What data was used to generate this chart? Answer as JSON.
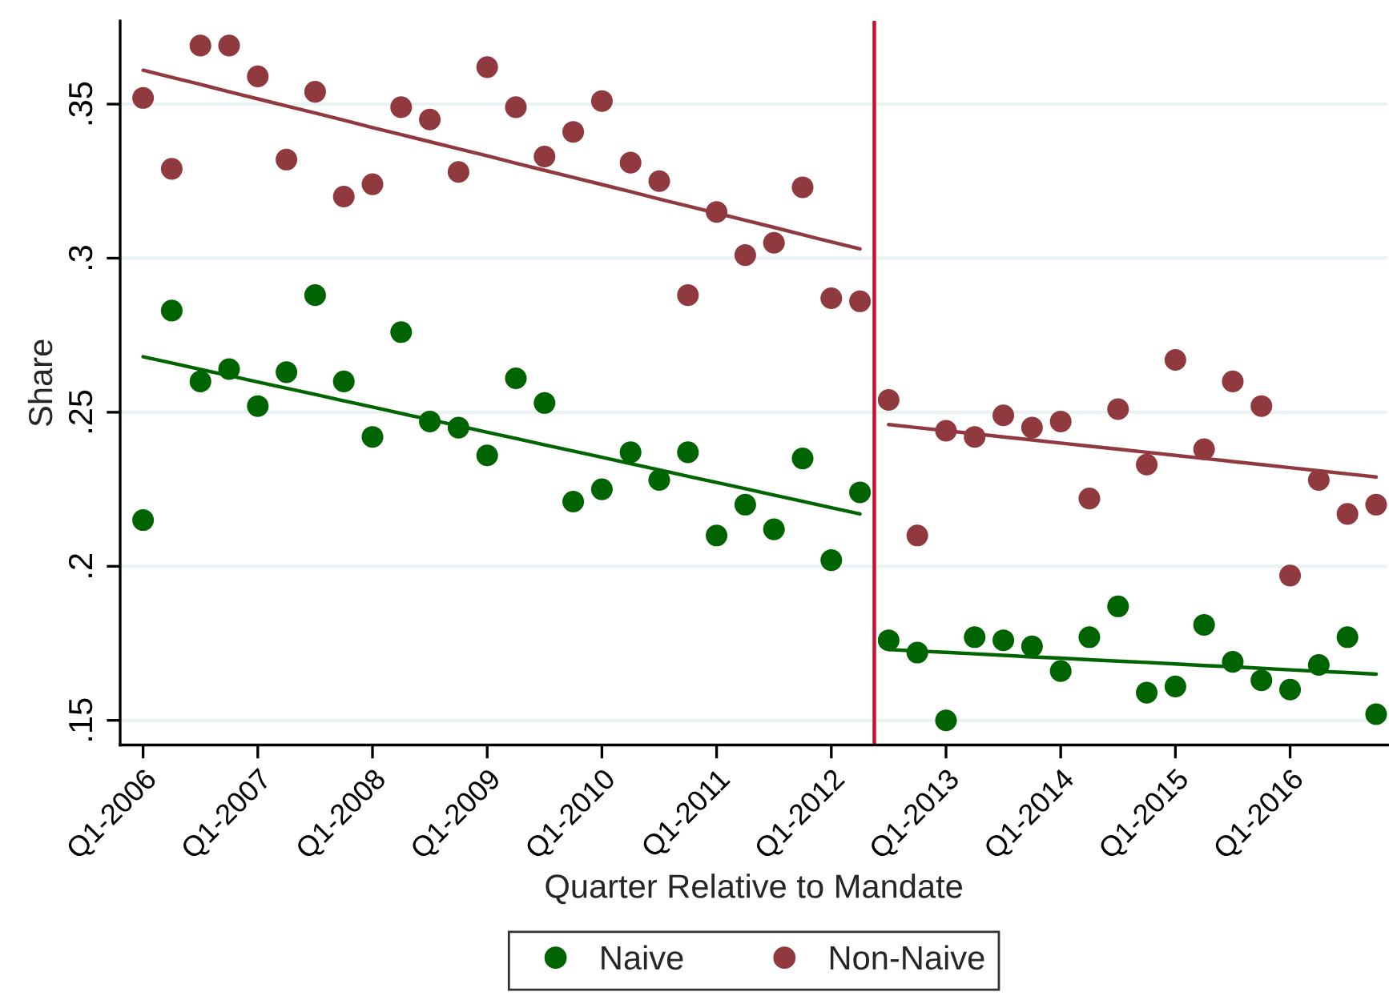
{
  "chart_data": {
    "type": "scatter",
    "xlabel": "Quarter Relative to Mandate",
    "ylabel": "Share",
    "ylim": [
      0.142,
      0.377
    ],
    "categories": [
      "Q1-2006",
      null,
      null,
      null,
      "Q1-2007",
      null,
      null,
      null,
      "Q1-2008",
      null,
      null,
      null,
      "Q1-2009",
      null,
      null,
      null,
      "Q1-2010",
      null,
      null,
      null,
      "Q1-2011",
      null,
      null,
      null,
      "Q1-2012",
      null,
      null,
      null,
      "Q1-2013",
      null,
      null,
      null,
      "Q1-2014",
      null,
      null,
      null,
      "Q1-2015",
      null,
      null,
      null,
      "Q1-2016",
      null,
      null,
      null
    ],
    "yticks": [
      {
        "value": 0.15,
        "label": ".15"
      },
      {
        "value": 0.2,
        "label": ".2"
      },
      {
        "value": 0.25,
        "label": ".25"
      },
      {
        "value": 0.3,
        "label": ".3"
      },
      {
        "value": 0.35,
        "label": ".35"
      }
    ],
    "series": [
      {
        "name": "Naive",
        "color": "#006400",
        "values": [
          0.215,
          0.283,
          0.26,
          0.264,
          0.252,
          0.263,
          0.288,
          0.26,
          0.242,
          0.276,
          0.247,
          0.245,
          0.236,
          0.261,
          0.253,
          0.221,
          0.225,
          0.237,
          0.228,
          0.237,
          0.21,
          0.22,
          0.212,
          0.235,
          0.202,
          0.224,
          0.176,
          0.172,
          0.15,
          0.177,
          0.176,
          0.174,
          0.166,
          0.177,
          0.187,
          0.159,
          0.161,
          0.181,
          0.169,
          0.163,
          0.16,
          0.168,
          0.177,
          0.152
        ]
      },
      {
        "name": "Non-Naive",
        "color": "#903a40",
        "values": [
          0.352,
          0.329,
          0.369,
          0.369,
          0.359,
          0.332,
          0.354,
          0.32,
          0.324,
          0.349,
          0.345,
          0.328,
          0.362,
          0.349,
          0.333,
          0.341,
          0.351,
          0.331,
          0.325,
          0.288,
          0.315,
          0.301,
          0.305,
          0.323,
          0.287,
          0.286,
          0.254,
          0.21,
          0.244,
          0.242,
          0.249,
          0.245,
          0.247,
          0.222,
          0.251,
          0.233,
          0.267,
          0.238,
          0.26,
          0.252,
          0.197,
          0.228,
          0.217,
          0.22
        ]
      },
      {
        "type": "line",
        "marker": "none",
        "color": "#006400",
        "values": [
          0.268,
          0.266,
          0.2639,
          0.2619,
          0.2598,
          0.2578,
          0.2558,
          0.2537,
          0.2517,
          0.2496,
          0.2476,
          0.2456,
          0.2435,
          0.2415,
          0.2394,
          0.2374,
          0.2354,
          0.2333,
          0.2313,
          0.2292,
          0.2272,
          0.2252,
          0.2231,
          0.2211,
          0.219,
          0.217,
          null,
          null,
          null,
          null,
          null,
          null,
          null,
          null,
          null,
          null,
          null,
          null,
          null,
          null,
          null,
          null,
          null,
          null
        ]
      },
      {
        "type": "line",
        "marker": "none",
        "color": "#903a40",
        "values": [
          0.361,
          0.3587,
          0.3564,
          0.354,
          0.3517,
          0.3494,
          0.3471,
          0.3448,
          0.3424,
          0.3401,
          0.3378,
          0.3355,
          0.3332,
          0.3308,
          0.3285,
          0.3262,
          0.3239,
          0.3216,
          0.3192,
          0.3169,
          0.3146,
          0.3123,
          0.31,
          0.3076,
          0.3053,
          0.303,
          null,
          null,
          null,
          null,
          null,
          null,
          null,
          null,
          null,
          null,
          null,
          null,
          null,
          null,
          null,
          null,
          null,
          null
        ]
      },
      {
        "type": "line",
        "marker": "none",
        "color": "#006400",
        "values": [
          null,
          null,
          null,
          null,
          null,
          null,
          null,
          null,
          null,
          null,
          null,
          null,
          null,
          null,
          null,
          null,
          null,
          null,
          null,
          null,
          null,
          null,
          null,
          null,
          null,
          null,
          0.173,
          0.1725,
          0.1721,
          0.1716,
          0.1711,
          0.1706,
          0.1702,
          0.1697,
          0.1692,
          0.1688,
          0.1683,
          0.1678,
          0.1674,
          0.1669,
          0.1664,
          0.1659,
          0.1655,
          0.165
        ]
      },
      {
        "type": "line",
        "marker": "none",
        "color": "#903a40",
        "values": [
          null,
          null,
          null,
          null,
          null,
          null,
          null,
          null,
          null,
          null,
          null,
          null,
          null,
          null,
          null,
          null,
          null,
          null,
          null,
          null,
          null,
          null,
          null,
          null,
          null,
          null,
          0.246,
          0.245,
          0.244,
          0.243,
          0.242,
          0.241,
          0.24,
          0.239,
          0.238,
          0.237,
          0.236,
          0.235,
          0.234,
          0.233,
          0.232,
          0.231,
          0.23,
          0.229
        ]
      }
    ],
    "grid": "y",
    "legend": "bottom",
    "marker": "circle"
  }
}
